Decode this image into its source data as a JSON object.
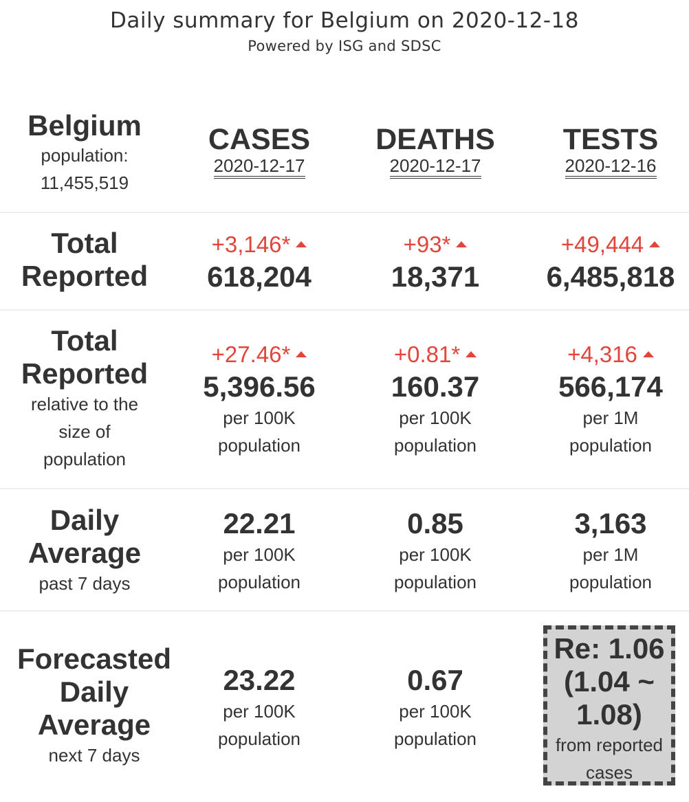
{
  "title": "Daily summary for Belgium on 2020-12-18",
  "subtitle": "Powered by ISG and SDSC",
  "region": {
    "name": "Belgium",
    "population_label": "population:",
    "population_value": "11,455,519"
  },
  "columns": [
    {
      "name": "CASES",
      "date": "2020-12-17"
    },
    {
      "name": "DEATHS",
      "date": "2020-12-17"
    },
    {
      "name": "TESTS",
      "date": "2020-12-16"
    }
  ],
  "rows": {
    "total": {
      "label_line1": "Total",
      "label_line2": "Reported",
      "cells": [
        {
          "delta": "+3,146*",
          "value": "618,204"
        },
        {
          "delta": "+93*",
          "value": "18,371"
        },
        {
          "delta": "+49,444",
          "value": "6,485,818"
        }
      ]
    },
    "relative": {
      "label_line1": "Total",
      "label_line2": "Reported",
      "sub1": "relative to the",
      "sub2": "size of",
      "sub3": "population",
      "cells": [
        {
          "delta": "+27.46*",
          "value": "5,396.56",
          "unit1": "per 100K",
          "unit2": "population"
        },
        {
          "delta": "+0.81*",
          "value": "160.37",
          "unit1": "per 100K",
          "unit2": "population"
        },
        {
          "delta": "+4,316",
          "value": "566,174",
          "unit1": "per 1M",
          "unit2": "population"
        }
      ]
    },
    "daily": {
      "label_line1": "Daily",
      "label_line2": "Average",
      "sub1": "past 7 days",
      "cells": [
        {
          "value": "22.21",
          "unit1": "per 100K",
          "unit2": "population"
        },
        {
          "value": "0.85",
          "unit1": "per 100K",
          "unit2": "population"
        },
        {
          "value": "3,163",
          "unit1": "per 1M",
          "unit2": "population"
        }
      ]
    },
    "forecast": {
      "label_line1": "Forecasted",
      "label_line2": "Daily",
      "label_line3": "Average",
      "sub1": "next 7 days",
      "cells": [
        {
          "value": "23.22",
          "unit1": "per 100K",
          "unit2": "population"
        },
        {
          "value": "0.67",
          "unit1": "per 100K",
          "unit2": "population"
        }
      ],
      "re": {
        "line1": "Re: 1.06",
        "line2": "(1.04 ~",
        "line3": "1.08)",
        "sub1": "from reported",
        "sub2": "cases"
      }
    }
  },
  "colors": {
    "delta": "#e0463b",
    "text": "#333333",
    "re_box_bg": "#d3d3d3"
  }
}
